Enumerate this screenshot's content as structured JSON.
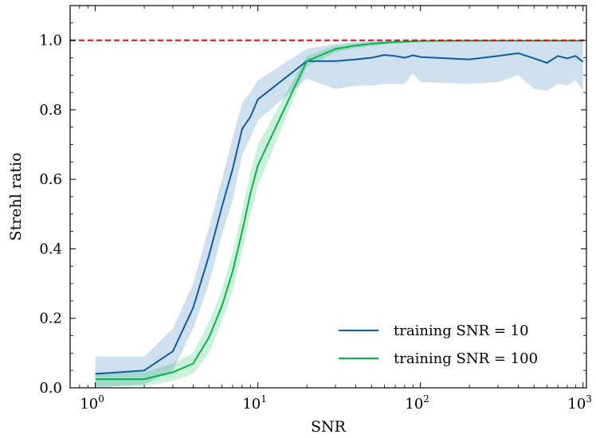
{
  "chart_data": {
    "type": "line",
    "xlabel": "SNR",
    "ylabel": "Strehl ratio",
    "xscale": "log",
    "xlim": [
      0.7,
      1050
    ],
    "ylim": [
      0.0,
      1.1
    ],
    "grid": false,
    "legend_position": "bottom-right",
    "x_ticks": [
      {
        "value": 1,
        "base": "10",
        "exp": "0"
      },
      {
        "value": 10,
        "base": "10",
        "exp": "1"
      },
      {
        "value": 100,
        "base": "10",
        "exp": "2"
      },
      {
        "value": 1000,
        "base": "10",
        "exp": "3"
      }
    ],
    "y_ticks": [
      {
        "value": 0.0,
        "label": "0.0"
      },
      {
        "value": 0.2,
        "label": "0.2"
      },
      {
        "value": 0.4,
        "label": "0.4"
      },
      {
        "value": 0.6,
        "label": "0.6"
      },
      {
        "value": 0.8,
        "label": "0.8"
      },
      {
        "value": 1.0,
        "label": "1.0"
      }
    ],
    "reference_line": {
      "y": 1.0,
      "color": "#e8000b",
      "style": "dashed"
    },
    "series": [
      {
        "name": "training SNR = 10",
        "color": "#0c5da5",
        "band_color": "#0c5da5",
        "x": [
          1,
          2,
          3,
          4,
          5,
          6,
          7,
          8,
          9,
          10,
          20,
          30,
          40,
          50,
          60,
          70,
          80,
          90,
          100,
          200,
          300,
          400,
          500,
          600,
          700,
          800,
          900,
          1000
        ],
        "y": [
          0.04,
          0.05,
          0.105,
          0.23,
          0.38,
          0.52,
          0.63,
          0.745,
          0.78,
          0.83,
          0.94,
          0.94,
          0.945,
          0.95,
          0.958,
          0.955,
          0.95,
          0.957,
          0.952,
          0.945,
          0.955,
          0.963,
          0.948,
          0.935,
          0.955,
          0.948,
          0.955,
          0.938
        ],
        "lower": [
          0.0,
          0.01,
          0.05,
          0.17,
          0.3,
          0.44,
          0.54,
          0.67,
          0.72,
          0.77,
          0.89,
          0.86,
          0.87,
          0.87,
          0.875,
          0.875,
          0.875,
          0.905,
          0.88,
          0.875,
          0.88,
          0.9,
          0.86,
          0.855,
          0.875,
          0.87,
          0.885,
          0.855
        ],
        "upper": [
          0.09,
          0.09,
          0.17,
          0.3,
          0.46,
          0.6,
          0.72,
          0.82,
          0.85,
          0.885,
          0.975,
          0.99,
          0.995,
          0.997,
          0.998,
          0.998,
          0.998,
          0.999,
          0.999,
          0.999,
          0.999,
          0.999,
          0.999,
          0.999,
          0.999,
          0.999,
          0.999,
          0.999
        ]
      },
      {
        "name": "training SNR = 100",
        "color": "#00b945",
        "band_color": "#00b945",
        "x": [
          1,
          2,
          3,
          4,
          5,
          6,
          7,
          8,
          9,
          10,
          20,
          30,
          40,
          50,
          60,
          70,
          80,
          90,
          100,
          200,
          300,
          400,
          500,
          600,
          700,
          800,
          900,
          1000
        ],
        "y": [
          0.025,
          0.025,
          0.045,
          0.07,
          0.145,
          0.235,
          0.335,
          0.45,
          0.56,
          0.64,
          0.94,
          0.975,
          0.985,
          0.99,
          0.993,
          0.995,
          0.996,
          0.997,
          0.998,
          0.999,
          0.999,
          0.999,
          0.999,
          0.999,
          0.999,
          0.999,
          0.999,
          0.999
        ],
        "lower": [
          0.005,
          0.005,
          0.02,
          0.04,
          0.1,
          0.19,
          0.28,
          0.39,
          0.5,
          0.58,
          0.925,
          0.965,
          0.978,
          0.984,
          0.988,
          0.99,
          0.992,
          0.994,
          0.995,
          0.997,
          0.997,
          0.997,
          0.997,
          0.997,
          0.997,
          0.997,
          0.997,
          0.997
        ],
        "upper": [
          0.045,
          0.045,
          0.07,
          0.1,
          0.19,
          0.28,
          0.39,
          0.51,
          0.62,
          0.7,
          0.955,
          0.985,
          0.992,
          0.995,
          0.997,
          0.998,
          0.998,
          0.999,
          0.999,
          1.0,
          1.0,
          1.0,
          1.0,
          1.0,
          1.0,
          1.0,
          1.0,
          1.0
        ]
      }
    ]
  }
}
